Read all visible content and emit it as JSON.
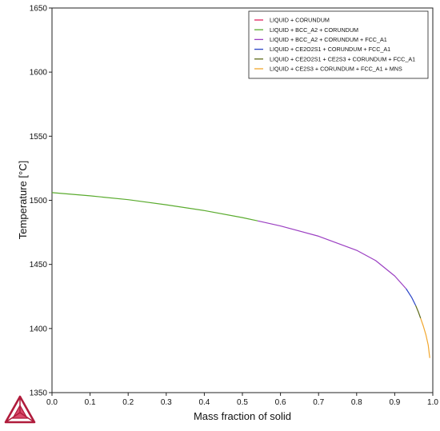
{
  "chart_data": {
    "type": "line",
    "xlabel": "Mass fraction of solid",
    "ylabel": "Temperature [°C]",
    "xlim": [
      0.0,
      1.0
    ],
    "ylim": [
      1350,
      1650
    ],
    "xticks": [
      "0.0",
      "0.1",
      "0.2",
      "0.3",
      "0.4",
      "0.5",
      "0.6",
      "0.7",
      "0.8",
      "0.9",
      "1.0"
    ],
    "yticks": [
      "1350",
      "1400",
      "1450",
      "1500",
      "1550",
      "1600",
      "1650"
    ],
    "grid": false,
    "legend_position": "top-right",
    "series": [
      {
        "name": "LIQUID + CORUNDUM",
        "color": "#e0245e",
        "x": [],
        "y": []
      },
      {
        "name": "LIQUID + BCC_A2 + CORUNDUM",
        "color": "#5aab2e",
        "x": [
          0.0,
          0.1,
          0.2,
          0.3,
          0.4,
          0.5,
          0.54
        ],
        "y": [
          1506,
          1503.5,
          1500.5,
          1496.5,
          1492,
          1486.5,
          1484
        ]
      },
      {
        "name": "LIQUID + BCC_A2 + CORUNDUM + FCC_A1",
        "color": "#9b3fc2",
        "x": [
          0.54,
          0.6,
          0.7,
          0.8,
          0.85,
          0.9,
          0.93
        ],
        "y": [
          1484,
          1480,
          1472,
          1461,
          1453,
          1441,
          1431
        ]
      },
      {
        "name": "LIQUID + CE2O2S1 + CORUNDUM + FCC_A1",
        "color": "#2a44c7",
        "x": [
          0.93,
          0.945,
          0.955
        ],
        "y": [
          1431,
          1424,
          1418
        ]
      },
      {
        "name": "LIQUID + CE2O2S1 + CE2S3 + CORUNDUM + FCC_A1",
        "color": "#5f6b1b",
        "x": [
          0.955,
          0.962,
          0.968
        ],
        "y": [
          1418,
          1413,
          1408
        ]
      },
      {
        "name": "LIQUID + CE2S3 + CORUNDUM + FCC_A1 + MNS",
        "color": "#f2a72e",
        "x": [
          0.968,
          0.975,
          0.982,
          0.988,
          0.992
        ],
        "y": [
          1408,
          1402,
          1395,
          1387,
          1377
        ]
      }
    ]
  }
}
